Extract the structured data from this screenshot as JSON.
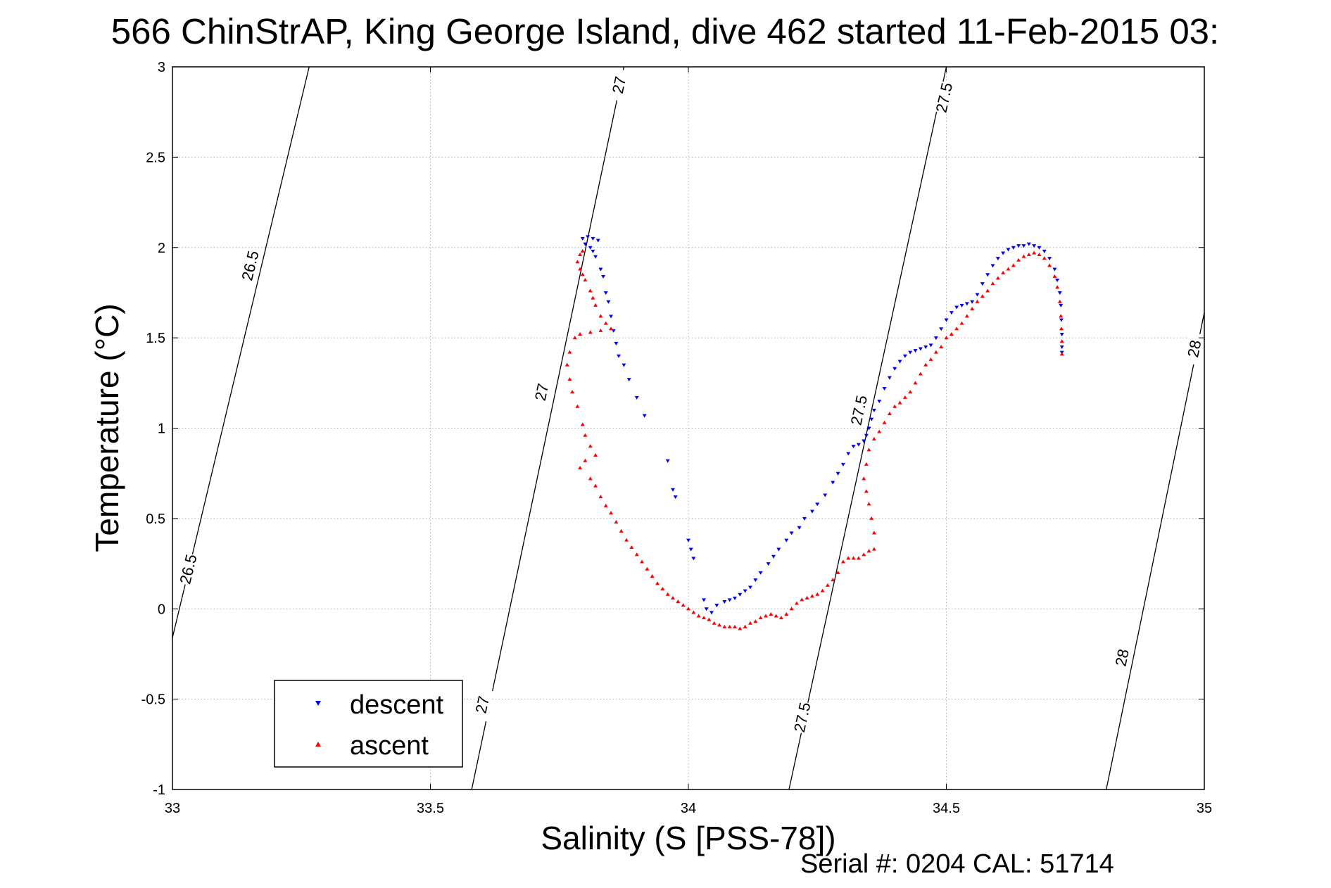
{
  "chart_data": {
    "type": "scatter",
    "title": "566 ChinStrAP, King George Island, dive 462 started 11-Feb-2015 03:",
    "xlabel": "Salinity (S [PSS-78])",
    "ylabel": "Temperature (°C)",
    "xlim": [
      33,
      35
    ],
    "ylim": [
      -1,
      3
    ],
    "x_ticks": [
      "33",
      "33.5",
      "34",
      "34.5",
      "35"
    ],
    "y_ticks": [
      "-1",
      "-0.5",
      "0",
      "0.5",
      "1",
      "1.5",
      "2",
      "2.5",
      "3"
    ],
    "grid": true,
    "legend_position": "bottom-left",
    "footer_text": "Serial #: 0204  CAL: 51714",
    "isopycnals": [
      {
        "label": "26.5",
        "bottom": [
          33,
          -0.16
        ],
        "top": [
          33.265,
          3
        ],
        "label_positions": [
          [
            33.15,
            1.9
          ],
          [
            33.03,
            0.22
          ]
        ]
      },
      {
        "label": "27",
        "bottom": [
          33.58,
          -1
        ],
        "top": [
          33.875,
          3
        ],
        "label_positions": [
          [
            33.865,
            2.9
          ],
          [
            33.715,
            1.2
          ],
          [
            33.6,
            -0.53
          ]
        ]
      },
      {
        "label": "27.5",
        "bottom": [
          34.195,
          -1
        ],
        "top": [
          34.5,
          3
        ],
        "label_positions": [
          [
            34.495,
            2.83
          ],
          [
            34.33,
            1.1
          ],
          [
            34.22,
            -0.6
          ]
        ]
      },
      {
        "label": "28",
        "bottom": [
          34.81,
          -1
        ],
        "top": [
          35,
          1.64
        ],
        "label_positions": [
          [
            34.98,
            1.44
          ],
          [
            34.84,
            -0.27
          ]
        ]
      }
    ],
    "series": [
      {
        "name": "descent",
        "color": "#0000ff",
        "marker": "triangle-down",
        "points": [
          [
            33.795,
            2.05
          ],
          [
            33.805,
            2.06
          ],
          [
            33.815,
            2.05
          ],
          [
            33.825,
            2.04
          ],
          [
            33.8,
            2.02
          ],
          [
            33.81,
            2.0
          ],
          [
            33.815,
            1.98
          ],
          [
            33.82,
            1.95
          ],
          [
            33.83,
            1.88
          ],
          [
            33.835,
            1.84
          ],
          [
            33.84,
            1.75
          ],
          [
            33.845,
            1.7
          ],
          [
            33.85,
            1.62
          ],
          [
            33.855,
            1.54
          ],
          [
            33.86,
            1.47
          ],
          [
            33.865,
            1.4
          ],
          [
            33.875,
            1.35
          ],
          [
            33.885,
            1.27
          ],
          [
            33.9,
            1.17
          ],
          [
            33.915,
            1.07
          ],
          [
            33.96,
            0.82
          ],
          [
            33.97,
            0.66
          ],
          [
            33.975,
            0.62
          ],
          [
            34.0,
            0.38
          ],
          [
            34.005,
            0.33
          ],
          [
            34.01,
            0.28
          ],
          [
            34.03,
            0.05
          ],
          [
            34.035,
            0.0
          ],
          [
            34.045,
            -0.02
          ],
          [
            34.055,
            0.02
          ],
          [
            34.07,
            0.04
          ],
          [
            34.08,
            0.05
          ],
          [
            34.09,
            0.06
          ],
          [
            34.1,
            0.08
          ],
          [
            34.11,
            0.1
          ],
          [
            34.12,
            0.12
          ],
          [
            34.13,
            0.16
          ],
          [
            34.14,
            0.2
          ],
          [
            34.155,
            0.25
          ],
          [
            34.165,
            0.29
          ],
          [
            34.175,
            0.33
          ],
          [
            34.19,
            0.38
          ],
          [
            34.2,
            0.42
          ],
          [
            34.215,
            0.45
          ],
          [
            34.225,
            0.5
          ],
          [
            34.24,
            0.54
          ],
          [
            34.25,
            0.58
          ],
          [
            34.265,
            0.63
          ],
          [
            34.28,
            0.7
          ],
          [
            34.29,
            0.75
          ],
          [
            34.3,
            0.8
          ],
          [
            34.31,
            0.86
          ],
          [
            34.32,
            0.9
          ],
          [
            34.33,
            0.91
          ],
          [
            34.34,
            0.93
          ],
          [
            34.345,
            0.96
          ],
          [
            34.35,
            1.0
          ],
          [
            34.355,
            1.05
          ],
          [
            34.36,
            1.1
          ],
          [
            34.37,
            1.15
          ],
          [
            34.38,
            1.22
          ],
          [
            34.39,
            1.28
          ],
          [
            34.4,
            1.33
          ],
          [
            34.41,
            1.37
          ],
          [
            34.42,
            1.4
          ],
          [
            34.43,
            1.42
          ],
          [
            34.44,
            1.43
          ],
          [
            34.45,
            1.44
          ],
          [
            34.46,
            1.45
          ],
          [
            34.47,
            1.46
          ],
          [
            34.48,
            1.5
          ],
          [
            34.49,
            1.55
          ],
          [
            34.5,
            1.6
          ],
          [
            34.51,
            1.64
          ],
          [
            34.52,
            1.67
          ],
          [
            34.53,
            1.68
          ],
          [
            34.54,
            1.69
          ],
          [
            34.55,
            1.7
          ],
          [
            34.56,
            1.74
          ],
          [
            34.57,
            1.8
          ],
          [
            34.58,
            1.85
          ],
          [
            34.59,
            1.9
          ],
          [
            34.6,
            1.94
          ],
          [
            34.61,
            1.97
          ],
          [
            34.62,
            1.99
          ],
          [
            34.63,
            2.0
          ],
          [
            34.64,
            2.01
          ],
          [
            34.65,
            2.01
          ],
          [
            34.66,
            2.02
          ],
          [
            34.67,
            2.01
          ],
          [
            34.68,
            2.0
          ],
          [
            34.69,
            1.98
          ],
          [
            34.7,
            1.94
          ],
          [
            34.71,
            1.88
          ],
          [
            34.715,
            1.82
          ],
          [
            34.72,
            1.75
          ],
          [
            34.722,
            1.68
          ],
          [
            34.723,
            1.6
          ],
          [
            34.724,
            1.52
          ],
          [
            34.724,
            1.45
          ],
          [
            34.724,
            1.42
          ]
        ]
      },
      {
        "name": "ascent",
        "color": "#ff0000",
        "marker": "triangle-up",
        "points": [
          [
            33.795,
            1.98
          ],
          [
            33.79,
            1.96
          ],
          [
            33.785,
            1.92
          ],
          [
            33.79,
            1.88
          ],
          [
            33.795,
            1.85
          ],
          [
            33.8,
            1.82
          ],
          [
            33.81,
            1.76
          ],
          [
            33.815,
            1.72
          ],
          [
            33.82,
            1.68
          ],
          [
            33.83,
            1.62
          ],
          [
            33.84,
            1.58
          ],
          [
            33.85,
            1.55
          ],
          [
            33.83,
            1.54
          ],
          [
            33.81,
            1.53
          ],
          [
            33.79,
            1.52
          ],
          [
            33.78,
            1.5
          ],
          [
            33.77,
            1.42
          ],
          [
            33.765,
            1.35
          ],
          [
            33.77,
            1.27
          ],
          [
            33.775,
            1.2
          ],
          [
            33.785,
            1.12
          ],
          [
            33.795,
            1.02
          ],
          [
            33.8,
            0.96
          ],
          [
            33.81,
            0.9
          ],
          [
            33.82,
            0.85
          ],
          [
            33.8,
            0.82
          ],
          [
            33.79,
            0.78
          ],
          [
            33.81,
            0.72
          ],
          [
            33.82,
            0.68
          ],
          [
            33.83,
            0.62
          ],
          [
            33.84,
            0.57
          ],
          [
            33.85,
            0.53
          ],
          [
            33.86,
            0.48
          ],
          [
            33.87,
            0.43
          ],
          [
            33.88,
            0.38
          ],
          [
            33.89,
            0.34
          ],
          [
            33.9,
            0.3
          ],
          [
            33.91,
            0.26
          ],
          [
            33.92,
            0.22
          ],
          [
            33.93,
            0.18
          ],
          [
            33.94,
            0.14
          ],
          [
            33.95,
            0.11
          ],
          [
            33.96,
            0.08
          ],
          [
            33.97,
            0.06
          ],
          [
            33.98,
            0.04
          ],
          [
            33.99,
            0.02
          ],
          [
            34.0,
            0.0
          ],
          [
            34.01,
            -0.02
          ],
          [
            34.02,
            -0.04
          ],
          [
            34.03,
            -0.05
          ],
          [
            34.04,
            -0.06
          ],
          [
            34.05,
            -0.08
          ],
          [
            34.06,
            -0.09
          ],
          [
            34.07,
            -0.1
          ],
          [
            34.08,
            -0.1
          ],
          [
            34.09,
            -0.1
          ],
          [
            34.1,
            -0.11
          ],
          [
            34.11,
            -0.1
          ],
          [
            34.12,
            -0.08
          ],
          [
            34.13,
            -0.07
          ],
          [
            34.14,
            -0.05
          ],
          [
            34.15,
            -0.04
          ],
          [
            34.16,
            -0.03
          ],
          [
            34.17,
            -0.04
          ],
          [
            34.18,
            -0.05
          ],
          [
            34.19,
            -0.03
          ],
          [
            34.2,
            0.0
          ],
          [
            34.21,
            0.03
          ],
          [
            34.22,
            0.05
          ],
          [
            34.23,
            0.06
          ],
          [
            34.24,
            0.07
          ],
          [
            34.25,
            0.08
          ],
          [
            34.26,
            0.1
          ],
          [
            34.27,
            0.13
          ],
          [
            34.28,
            0.16
          ],
          [
            34.29,
            0.2
          ],
          [
            34.3,
            0.26
          ],
          [
            34.31,
            0.28
          ],
          [
            34.32,
            0.28
          ],
          [
            34.33,
            0.28
          ],
          [
            34.34,
            0.3
          ],
          [
            34.35,
            0.32
          ],
          [
            34.36,
            0.33
          ],
          [
            34.36,
            0.42
          ],
          [
            34.355,
            0.5
          ],
          [
            34.35,
            0.58
          ],
          [
            34.345,
            0.65
          ],
          [
            34.34,
            0.72
          ],
          [
            34.345,
            0.8
          ],
          [
            34.35,
            0.88
          ],
          [
            34.36,
            0.94
          ],
          [
            34.37,
            0.98
          ],
          [
            34.38,
            1.03
          ],
          [
            34.39,
            1.08
          ],
          [
            34.4,
            1.12
          ],
          [
            34.41,
            1.14
          ],
          [
            34.42,
            1.17
          ],
          [
            34.43,
            1.2
          ],
          [
            34.44,
            1.25
          ],
          [
            34.45,
            1.3
          ],
          [
            34.46,
            1.35
          ],
          [
            34.47,
            1.38
          ],
          [
            34.48,
            1.42
          ],
          [
            34.49,
            1.45
          ],
          [
            34.5,
            1.5
          ],
          [
            34.51,
            1.52
          ],
          [
            34.52,
            1.55
          ],
          [
            34.53,
            1.58
          ],
          [
            34.54,
            1.62
          ],
          [
            34.55,
            1.66
          ],
          [
            34.56,
            1.7
          ],
          [
            34.57,
            1.73
          ],
          [
            34.58,
            1.76
          ],
          [
            34.59,
            1.8
          ],
          [
            34.6,
            1.83
          ],
          [
            34.61,
            1.86
          ],
          [
            34.62,
            1.88
          ],
          [
            34.63,
            1.9
          ],
          [
            34.64,
            1.93
          ],
          [
            34.65,
            1.95
          ],
          [
            34.66,
            1.96
          ],
          [
            34.67,
            1.97
          ],
          [
            34.68,
            1.96
          ],
          [
            34.69,
            1.94
          ],
          [
            34.7,
            1.9
          ],
          [
            34.71,
            1.84
          ],
          [
            34.715,
            1.78
          ],
          [
            34.72,
            1.7
          ],
          [
            34.722,
            1.62
          ],
          [
            34.723,
            1.55
          ],
          [
            34.724,
            1.48
          ],
          [
            34.724,
            1.41
          ]
        ]
      }
    ]
  }
}
